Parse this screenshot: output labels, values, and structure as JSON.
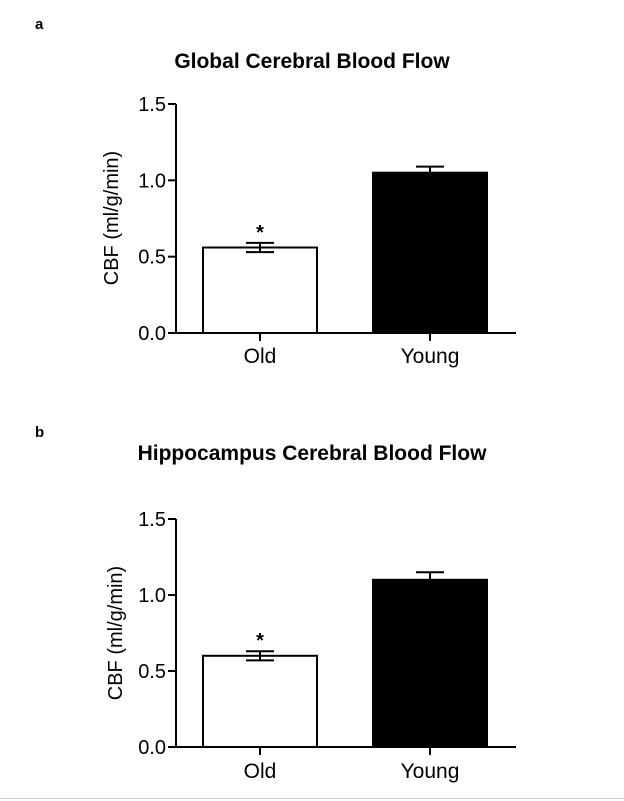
{
  "chart_data": [
    {
      "type": "bar",
      "panel_label": "a",
      "title": "Global Cerebral Blood Flow",
      "ylabel": "CBF (ml/g/min)",
      "xlabel": "",
      "categories": [
        "Old",
        "Young"
      ],
      "values": [
        0.56,
        1.05
      ],
      "errors": [
        0.03,
        0.04
      ],
      "bar_colors": [
        "#ffffff",
        "#000000"
      ],
      "significance": [
        "*",
        ""
      ],
      "ylim": [
        0,
        1.5
      ],
      "yticks": [
        "0.0",
        "0.5",
        "1.0",
        "1.5"
      ],
      "ytick_values": [
        0,
        0.5,
        1.0,
        1.5
      ]
    },
    {
      "type": "bar",
      "panel_label": "b",
      "title": "Hippocampus Cerebral Blood Flow",
      "ylabel": "CBF (ml/g/min)",
      "xlabel": "",
      "categories": [
        "Old",
        "Young"
      ],
      "values": [
        0.6,
        1.1
      ],
      "errors": [
        0.03,
        0.05
      ],
      "bar_colors": [
        "#ffffff",
        "#000000"
      ],
      "significance": [
        "*",
        ""
      ],
      "ylim": [
        0,
        1.5
      ],
      "yticks": [
        "0.0",
        "0.5",
        "1.0",
        "1.5"
      ],
      "ytick_values": [
        0,
        0.5,
        1.0,
        1.5
      ]
    }
  ]
}
